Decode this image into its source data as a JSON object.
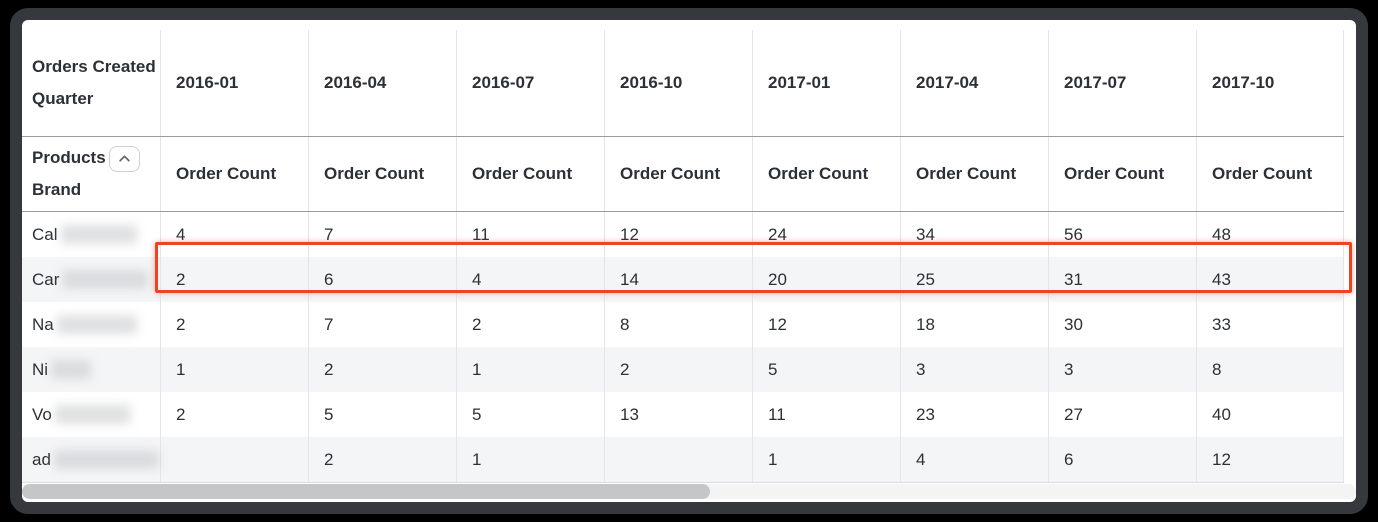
{
  "table": {
    "corner_header": "Orders Created Quarter",
    "row_dimension": "Products Brand",
    "row_dimension_lines": [
      "Products",
      "Brand"
    ],
    "collapse_button_icon": "chevron-up-icon",
    "metric_label": "Order Count",
    "quarters": [
      "2016-01",
      "2016-04",
      "2016-07",
      "2016-10",
      "2017-01",
      "2017-04",
      "2017-07",
      "2017-10"
    ],
    "rows": [
      {
        "brand_prefix": "Cal",
        "brand_redacted": true,
        "redact_width": 76,
        "values": [
          "4",
          "7",
          "11",
          "12",
          "24",
          "34",
          "56",
          "48"
        ]
      },
      {
        "brand_prefix": "Car",
        "brand_redacted": true,
        "redact_width": 86,
        "values": [
          "2",
          "6",
          "4",
          "14",
          "20",
          "25",
          "31",
          "43"
        ]
      },
      {
        "brand_prefix": "Na",
        "brand_redacted": true,
        "redact_width": 80,
        "values": [
          "2",
          "7",
          "2",
          "8",
          "12",
          "18",
          "30",
          "33"
        ]
      },
      {
        "brand_prefix": "Ni",
        "brand_redacted": true,
        "redact_width": 40,
        "values": [
          "1",
          "2",
          "1",
          "2",
          "5",
          "3",
          "3",
          "8"
        ]
      },
      {
        "brand_prefix": "Vo",
        "brand_redacted": true,
        "redact_width": 75,
        "values": [
          "2",
          "5",
          "5",
          "13",
          "11",
          "23",
          "27",
          "40"
        ]
      },
      {
        "brand_prefix": "ad",
        "brand_redacted": true,
        "redact_width": 105,
        "values": [
          "",
          "2",
          "1",
          "",
          "1",
          "4",
          "6",
          "12"
        ]
      }
    ],
    "highlighted_row_index": 1,
    "colors": {
      "highlight": "#ee4423",
      "row_stripe": "#f4f5f6",
      "header_separator": "#989da2",
      "grid_line": "#e3e5e8",
      "text": "#2b3137",
      "window_frame": "#35393d",
      "scrollbar_thumb": "#c5c6c8"
    }
  },
  "scrollbar": {
    "orientation": "horizontal",
    "thumb_side": "left"
  }
}
